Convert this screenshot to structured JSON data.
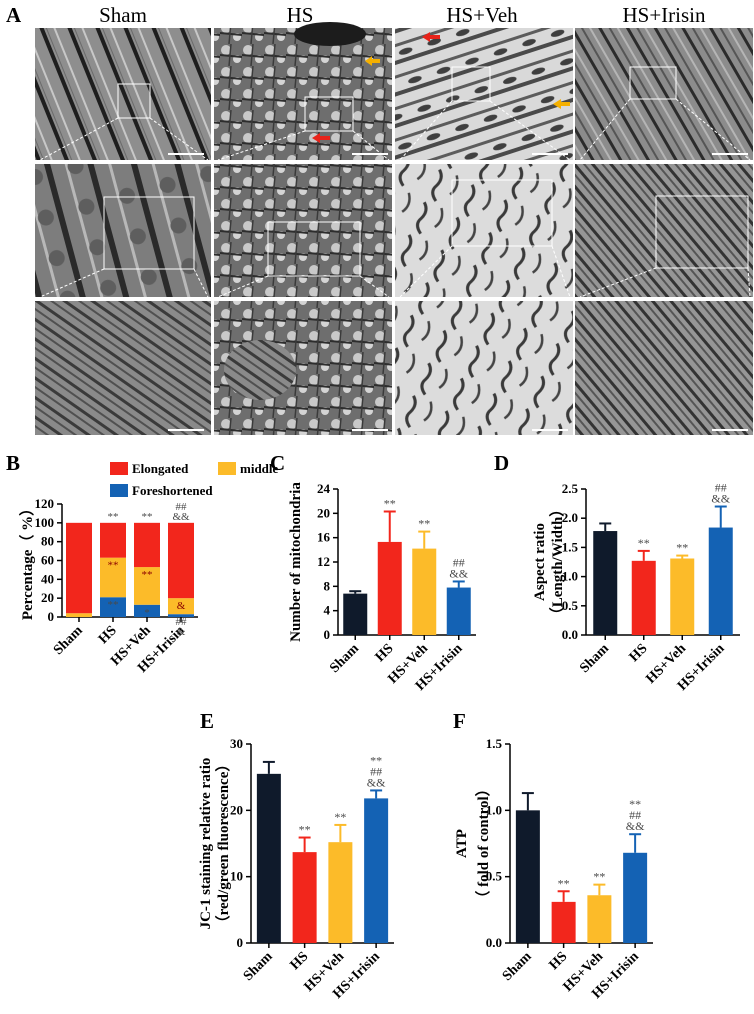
{
  "colors": {
    "sham": "#0f1a2b",
    "hs": "#f2261c",
    "veh": "#fcbb29",
    "irisin": "#1462b4",
    "arrow_red": "#e8231a",
    "arrow_yellow": "#f5b000"
  },
  "panel_a": {
    "label": "A",
    "group_titles": [
      "Sham",
      "HS",
      "HS+Veh",
      "HS+Irisin"
    ]
  },
  "chart_data": [
    {
      "panel": "B",
      "type": "bar",
      "stacked": true,
      "categories": [
        "Sham",
        "HS",
        "HS+Veh",
        "HS+Irisin"
      ],
      "ylabel": "Percentage（ %）",
      "ylim": [
        0,
        120
      ],
      "yticks": [
        0,
        20,
        40,
        60,
        80,
        100,
        120
      ],
      "legend": [
        "Elongated",
        "middle",
        "Foreshortened"
      ],
      "series": [
        {
          "name": "Foreshortened",
          "color_key": "irisin",
          "values": [
            0,
            21,
            13,
            3
          ]
        },
        {
          "name": "middle",
          "color_key": "veh",
          "values": [
            4,
            42,
            40,
            17
          ]
        },
        {
          "name": "Elongated",
          "color_key": "hs",
          "values": [
            96,
            37,
            47,
            80
          ]
        }
      ],
      "annotations": [
        {
          "index": 1,
          "at": 100,
          "text": "**",
          "color": "#4a4a4a"
        },
        {
          "index": 2,
          "at": 100,
          "text": "**",
          "color": "#4a4a4a"
        },
        {
          "index": 3,
          "at": 100,
          "lines": [
            "##",
            "&&"
          ],
          "color": "#4a4a4a"
        },
        {
          "index": 1,
          "at": 63,
          "text": "**",
          "color": "#8b0000",
          "inside": true
        },
        {
          "index": 2,
          "at": 53,
          "text": "**",
          "color": "#8b0000",
          "inside": true
        },
        {
          "index": 1,
          "at": 21,
          "text": "**",
          "color": "#4a4a4a",
          "inside": true
        },
        {
          "index": 2,
          "at": 13,
          "text": "*",
          "color": "#4a4a4a",
          "inside": true
        },
        {
          "index": 3,
          "at": 20,
          "text": "&",
          "color": "#8b0000",
          "inside": true
        },
        {
          "index": 3,
          "at": 3,
          "lines": [
            "##",
            "&"
          ],
          "color": "#4a4a4a",
          "inside": true
        }
      ]
    },
    {
      "panel": "C",
      "type": "bar",
      "categories": [
        "Sham",
        "HS",
        "HS+Veh",
        "HS+Irisin"
      ],
      "ylabel": "Number of mitochondria",
      "ylim": [
        0,
        24
      ],
      "yticks": [
        0,
        4,
        8,
        12,
        16,
        20,
        24
      ],
      "values": [
        6.8,
        15.3,
        14.2,
        7.8
      ],
      "errors": [
        0.4,
        5.0,
        2.8,
        1.0
      ],
      "annotations": [
        [
          ""
        ],
        [
          "**"
        ],
        [
          "**"
        ],
        [
          "##",
          "&&"
        ]
      ]
    },
    {
      "panel": "D",
      "type": "bar",
      "categories": [
        "Sham",
        "HS",
        "HS+Veh",
        "HS+Irisin"
      ],
      "ylabel": "Aspect ratio",
      "ylabel2": "（Length/Width）",
      "ylim": [
        0,
        2.5
      ],
      "yticks": [
        "0.0",
        "0.5",
        "1.0",
        "1.5",
        "2.0",
        "2.5"
      ],
      "values": [
        1.78,
        1.27,
        1.31,
        1.84
      ],
      "errors": [
        0.13,
        0.17,
        0.05,
        0.36
      ],
      "annotations": [
        [
          ""
        ],
        [
          "**"
        ],
        [
          "**"
        ],
        [
          "##",
          "&&"
        ]
      ]
    },
    {
      "panel": "E",
      "type": "bar",
      "categories": [
        "Sham",
        "HS",
        "HS+Veh",
        "HS+Irisin"
      ],
      "ylabel": "JC-1 staining relative ratio",
      "ylabel2": "（red/green fluorescence）",
      "ylim": [
        0,
        30
      ],
      "yticks": [
        0,
        10,
        20,
        30
      ],
      "values": [
        25.5,
        13.7,
        15.2,
        21.8
      ],
      "errors": [
        1.8,
        2.2,
        2.6,
        1.2
      ],
      "annotations": [
        [
          ""
        ],
        [
          "**"
        ],
        [
          "**"
        ],
        [
          "**",
          "##",
          "&&"
        ]
      ]
    },
    {
      "panel": "F",
      "type": "bar",
      "categories": [
        "Sham",
        "HS",
        "HS+Veh",
        "HS+Irisin"
      ],
      "ylabel": "ATP",
      "ylabel2": "（ fold of control）",
      "ylim": [
        0,
        1.5
      ],
      "yticks": [
        "0.0",
        "0.5",
        "1.0",
        "1.5"
      ],
      "values": [
        1.0,
        0.31,
        0.36,
        0.68
      ],
      "errors": [
        0.13,
        0.08,
        0.08,
        0.14
      ],
      "annotations": [
        [
          ""
        ],
        [
          "**"
        ],
        [
          "**"
        ],
        [
          "**",
          "##",
          "&&"
        ]
      ]
    }
  ]
}
